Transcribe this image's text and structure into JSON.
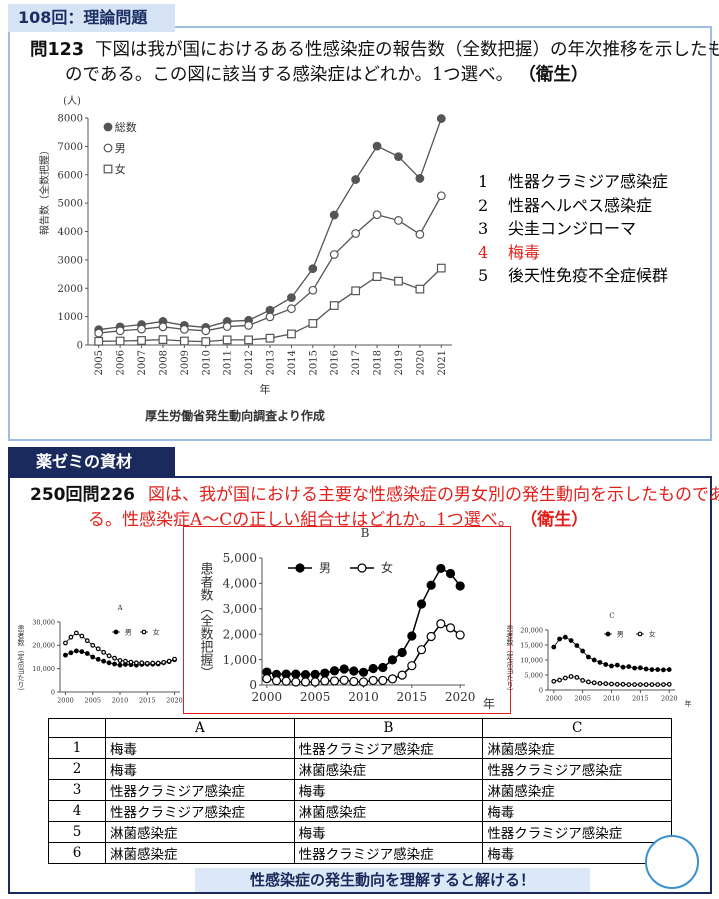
{
  "header": {
    "exam": "108回：理論問題"
  },
  "question1": {
    "number": "問123",
    "text": "下図は我が国におけるある性感染症の報告数（全数把握）の年次推移を示したものである。この図に該当する感染症はどれか。1つ選べ。",
    "field": "（衛生）",
    "highlight_color": "#e0201b",
    "choices": [
      {
        "number": "1",
        "text": "性器クラミジア感染症"
      },
      {
        "number": "2",
        "text": "性器ヘルペス感染症"
      },
      {
        "number": "3",
        "text": "尖圭コンジローマ"
      },
      {
        "number": "4",
        "text": "梅毒",
        "highlighted": true
      },
      {
        "number": "5",
        "text": "後天性免疫不全症候群"
      }
    ]
  },
  "section": {
    "label": "薬ゼミの資材"
  },
  "question2": {
    "number": "250回問226",
    "text": "図は、我が国における主要な性感染症の男女別の発生動向を示したものである。性感染症A〜Cの正しい組合せはどれか。1つ選べ。",
    "field": "（衛生）"
  },
  "chart_data": [
    {
      "type": "line",
      "y_unit": "(人)",
      "ylabel": "報告数（全数把握）",
      "xlabel": "年",
      "source": "厚生労働省発生動向調査より作成",
      "x": [
        2005,
        2006,
        2007,
        2008,
        2009,
        2010,
        2011,
        2012,
        2013,
        2014,
        2015,
        2016,
        2017,
        2018,
        2019,
        2020,
        2021
      ],
      "xlim": [
        2004.5,
        2021.5
      ],
      "xticks": [
        2005,
        2006,
        2007,
        2008,
        2009,
        2010,
        2011,
        2012,
        2013,
        2014,
        2015,
        2016,
        2017,
        2018,
        2019,
        2020,
        2021
      ],
      "ylim": [
        0,
        8000
      ],
      "yticks": [
        0,
        1000,
        2000,
        3000,
        4000,
        5000,
        6000,
        7000,
        8000
      ],
      "series": [
        {
          "name": "総数",
          "color": "#555555",
          "marker": "circle-filled",
          "values": [
            540,
            640,
            720,
            830,
            690,
            620,
            830,
            870,
            1230,
            1670,
            2690,
            4580,
            5830,
            7010,
            6640,
            5870,
            7980
          ]
        },
        {
          "name": "男",
          "color": "#555555",
          "marker": "circle-open",
          "values": [
            420,
            500,
            560,
            640,
            550,
            500,
            650,
            690,
            990,
            1280,
            1930,
            3190,
            3930,
            4590,
            4390,
            3900,
            5260
          ]
        },
        {
          "name": "女",
          "color": "#555555",
          "marker": "square-open",
          "values": [
            130,
            140,
            160,
            190,
            140,
            120,
            180,
            180,
            240,
            390,
            760,
            1390,
            1910,
            2410,
            2250,
            1970,
            2710
          ]
        }
      ]
    },
    {
      "type": "line",
      "title": "A",
      "ylabel": "患者数（定点当たり）",
      "x": [
        2000,
        2001,
        2002,
        2003,
        2004,
        2005,
        2006,
        2007,
        2008,
        2009,
        2010,
        2011,
        2012,
        2013,
        2014,
        2015,
        2016,
        2017,
        2018,
        2019,
        2020
      ],
      "xlim": [
        1999,
        2021
      ],
      "xticks": [
        2000,
        2005,
        2010,
        2015,
        2020
      ],
      "ylim": [
        0,
        30000
      ],
      "yticks": [
        0,
        {
          "value": 10000,
          "label": "10,000"
        },
        {
          "value": 20000,
          "label": "20,000"
        },
        {
          "value": 30000,
          "label": "30,000"
        }
      ],
      "series": [
        {
          "name": "男",
          "color": "#000000",
          "marker": "circle-filled",
          "values": [
            15800,
            16800,
            17600,
            17300,
            16500,
            15000,
            14000,
            13200,
            12500,
            12000,
            11500,
            11800,
            11700,
            11500,
            11800,
            11900,
            11900,
            12000,
            12500,
            13000,
            13800
          ]
        },
        {
          "name": "女",
          "color": "#000000",
          "marker": "circle-open",
          "values": [
            21000,
            23500,
            25300,
            24000,
            22000,
            20000,
            18500,
            17000,
            15500,
            14500,
            13500,
            13200,
            12800,
            12500,
            12500,
            12300,
            12400,
            12400,
            12700,
            13200,
            14100
          ]
        }
      ]
    },
    {
      "type": "line",
      "title": "B",
      "ylabel": "患者数（全数把握）",
      "xlabel": "年",
      "x": [
        2000,
        2001,
        2002,
        2003,
        2004,
        2005,
        2006,
        2007,
        2008,
        2009,
        2010,
        2011,
        2012,
        2013,
        2014,
        2015,
        2016,
        2017,
        2018,
        2019,
        2020
      ],
      "xlim": [
        1999.5,
        2020.5
      ],
      "xticks": [
        2000,
        2005,
        2010,
        2015,
        2020
      ],
      "ylim": [
        0,
        5000
      ],
      "yticks": [
        0,
        {
          "value": 1000,
          "label": "1,000"
        },
        {
          "value": 2000,
          "label": "2,000"
        },
        {
          "value": 3000,
          "label": "3,000"
        },
        {
          "value": 4000,
          "label": "4,000"
        },
        {
          "value": 5000,
          "label": "5,000"
        }
      ],
      "series": [
        {
          "name": "男",
          "color": "#000000",
          "marker": "circle-filled",
          "values": [
            510,
            420,
            430,
            430,
            410,
            420,
            470,
            560,
            630,
            550,
            500,
            650,
            690,
            990,
            1280,
            1930,
            3190,
            3930,
            4590,
            4390,
            3900
          ]
        },
        {
          "name": "女",
          "color": "#000000",
          "marker": "circle-open",
          "values": [
            250,
            170,
            150,
            120,
            120,
            120,
            160,
            160,
            190,
            140,
            120,
            180,
            180,
            240,
            390,
            760,
            1390,
            1910,
            2410,
            2250,
            1970
          ]
        }
      ]
    },
    {
      "type": "line",
      "title": "C",
      "ylabel": "患者数（定点当たり）",
      "xlabel": "年",
      "x": [
        2000,
        2001,
        2002,
        2003,
        2004,
        2005,
        2006,
        2007,
        2008,
        2009,
        2010,
        2011,
        2012,
        2013,
        2014,
        2015,
        2016,
        2017,
        2018,
        2019,
        2020
      ],
      "xlim": [
        1999,
        2021
      ],
      "xticks": [
        2000,
        2005,
        2010,
        2015,
        2020
      ],
      "ylim": [
        0,
        20000
      ],
      "yticks": [
        0,
        {
          "value": 5000,
          "label": "5,000"
        },
        {
          "value": 10000,
          "label": "10,000"
        },
        {
          "value": 15000,
          "label": "15,000"
        },
        {
          "value": 20000,
          "label": "20,000"
        }
      ],
      "series": [
        {
          "name": "男",
          "color": "#000000",
          "marker": "circle-filled",
          "values": [
            14300,
            17000,
            17600,
            16500,
            14800,
            13000,
            11000,
            10000,
            9200,
            8500,
            8000,
            8300,
            7600,
            7800,
            7300,
            7400,
            7000,
            6800,
            6800,
            6700,
            6800
          ]
        },
        {
          "name": "女",
          "color": "#000000",
          "marker": "circle-open",
          "values": [
            2900,
            3300,
            4000,
            4500,
            4200,
            3200,
            2700,
            2400,
            2200,
            2100,
            2000,
            1900,
            1900,
            1800,
            1800,
            1800,
            1800,
            1800,
            1800,
            1800,
            1900
          ]
        }
      ]
    }
  ],
  "table": {
    "header": [
      "A",
      "B",
      "C"
    ],
    "rows": [
      [
        "1",
        "梅毒",
        "性器クラミジア感染症",
        "淋菌感染症"
      ],
      [
        "2",
        "梅毒",
        "淋菌感染症",
        "性器クラミジア感染症"
      ],
      [
        "3",
        "性器クラミジア感染症",
        "梅毒",
        "淋菌感染症"
      ],
      [
        "4",
        "性器クラミジア感染症",
        "淋菌感染症",
        "梅毒"
      ],
      [
        "5",
        "淋菌感染症",
        "梅毒",
        "性器クラミジア感染症"
      ],
      [
        "6",
        "淋菌感染症",
        "性器クラミジア感染症",
        "梅毒"
      ]
    ]
  },
  "footer": "性感染症の発生動向を理解すると解ける！"
}
